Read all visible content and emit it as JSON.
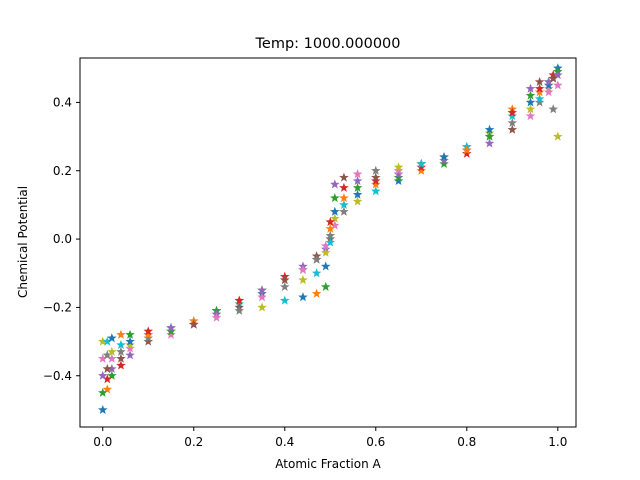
{
  "chart_data": {
    "type": "scatter",
    "title": "Temp: 1000.000000",
    "xlabel": "Atomic Fraction A",
    "ylabel": "Chemical Potential",
    "xlim": [
      -0.05,
      1.04
    ],
    "ylim": [
      -0.55,
      0.53
    ],
    "xticks": [
      0.0,
      0.2,
      0.4,
      0.6,
      0.8,
      1.0
    ],
    "xtick_labels": [
      "0.0",
      "0.2",
      "0.4",
      "0.6",
      "0.8",
      "1.0"
    ],
    "yticks": [
      -0.4,
      -0.2,
      0.0,
      0.2,
      0.4
    ],
    "ytick_labels": [
      "−0.4",
      "−0.2",
      "0.0",
      "0.2",
      "0.4"
    ],
    "grid": false,
    "marker": "star",
    "series_colors": [
      "#1f77b4",
      "#ff7f0e",
      "#2ca02c",
      "#d62728",
      "#9467bd",
      "#8c564b",
      "#e377c2",
      "#7f7f7f",
      "#bcbd22",
      "#17becf"
    ],
    "series": [
      {
        "x": [
          0.0,
          0.01,
          0.02,
          0.04,
          0.06,
          0.1,
          0.15,
          0.2,
          0.25,
          0.3,
          0.35,
          0.4,
          0.44,
          0.47,
          0.49,
          0.5,
          0.51,
          0.53,
          0.56,
          0.6,
          0.65,
          0.7,
          0.75,
          0.8,
          0.85,
          0.9,
          0.94,
          0.96,
          0.98,
          0.99,
          1.0
        ],
        "y": [
          -0.5,
          -0.44,
          -0.4,
          -0.37,
          -0.34,
          -0.3,
          -0.28,
          -0.25,
          -0.22,
          -0.19,
          -0.16,
          -0.12,
          -0.09,
          -0.06,
          -0.03,
          0.0,
          0.04,
          0.08,
          0.11,
          0.14,
          0.17,
          0.2,
          0.22,
          0.25,
          0.28,
          0.32,
          0.36,
          0.4,
          0.44,
          0.47,
          0.5
        ]
      },
      {
        "x": [
          0.0,
          0.01,
          0.02,
          0.04,
          0.06,
          0.1,
          0.15,
          0.2,
          0.25,
          0.3,
          0.35,
          0.4,
          0.44,
          0.47,
          0.49,
          0.5,
          0.51,
          0.53,
          0.56,
          0.6,
          0.65,
          0.7,
          0.75,
          0.8,
          0.85,
          0.9,
          0.94,
          0.96,
          0.98,
          0.99,
          1.0
        ],
        "y": [
          -0.45,
          -0.41,
          -0.38,
          -0.35,
          -0.32,
          -0.29,
          -0.27,
          -0.24,
          -0.21,
          -0.18,
          -0.15,
          -0.11,
          -0.08,
          -0.05,
          -0.02,
          0.01,
          0.06,
          0.1,
          0.13,
          0.16,
          0.18,
          0.21,
          0.23,
          0.26,
          0.3,
          0.34,
          0.38,
          0.41,
          0.45,
          0.47,
          0.49
        ]
      },
      {
        "x": [
          0.0,
          0.01,
          0.02,
          0.04,
          0.06,
          0.1,
          0.15,
          0.2,
          0.25,
          0.3,
          0.35,
          0.4,
          0.44,
          0.47,
          0.49,
          0.5,
          0.51,
          0.53,
          0.56,
          0.6,
          0.65,
          0.7,
          0.75,
          0.8,
          0.85,
          0.9,
          0.94,
          0.96,
          0.98,
          0.99,
          1.0
        ],
        "y": [
          -0.4,
          -0.38,
          -0.35,
          -0.33,
          -0.31,
          -0.28,
          -0.26,
          -0.24,
          -0.21,
          -0.18,
          -0.15,
          -0.12,
          -0.09,
          -0.06,
          -0.04,
          -0.01,
          0.08,
          0.12,
          0.15,
          0.17,
          0.19,
          0.22,
          0.24,
          0.27,
          0.31,
          0.36,
          0.4,
          0.43,
          0.46,
          0.48,
          0.48
        ]
      },
      {
        "x": [
          0.0,
          0.01,
          0.02,
          0.04,
          0.06,
          0.1,
          0.15,
          0.2,
          0.25,
          0.3,
          0.35,
          0.4,
          0.44,
          0.47,
          0.49,
          0.5,
          0.51,
          0.53,
          0.56,
          0.6,
          0.65,
          0.7,
          0.75,
          0.8,
          0.85,
          0.9,
          0.94,
          0.96,
          0.98,
          0.99,
          1.0
        ],
        "y": [
          -0.35,
          -0.34,
          -0.33,
          -0.31,
          -0.3,
          -0.28,
          -0.27,
          -0.25,
          -0.22,
          -0.2,
          -0.17,
          -0.14,
          -0.12,
          -0.1,
          -0.08,
          0.03,
          0.12,
          0.15,
          0.17,
          0.18,
          0.2,
          0.22,
          0.24,
          0.27,
          0.32,
          0.38,
          0.42,
          0.44,
          0.46,
          0.47,
          0.45
        ]
      },
      {
        "x": [
          0.0,
          0.01,
          0.02,
          0.04,
          0.06,
          0.1,
          0.15,
          0.2,
          0.25,
          0.3,
          0.35,
          0.4,
          0.44,
          0.47,
          0.49,
          0.5,
          0.51,
          0.53,
          0.56,
          0.6,
          0.65,
          0.7,
          0.75,
          0.8,
          0.85,
          0.9,
          0.94,
          0.96,
          0.98,
          0.99,
          1.0
        ],
        "y": [
          -0.3,
          -0.3,
          -0.29,
          -0.28,
          -0.28,
          -0.27,
          -0.26,
          -0.25,
          -0.23,
          -0.21,
          -0.2,
          -0.18,
          -0.17,
          -0.16,
          -0.14,
          0.05,
          0.16,
          0.18,
          0.19,
          0.2,
          0.21,
          0.22,
          0.24,
          0.26,
          0.3,
          0.37,
          0.44,
          0.46,
          0.43,
          0.38,
          0.3
        ]
      }
    ]
  }
}
